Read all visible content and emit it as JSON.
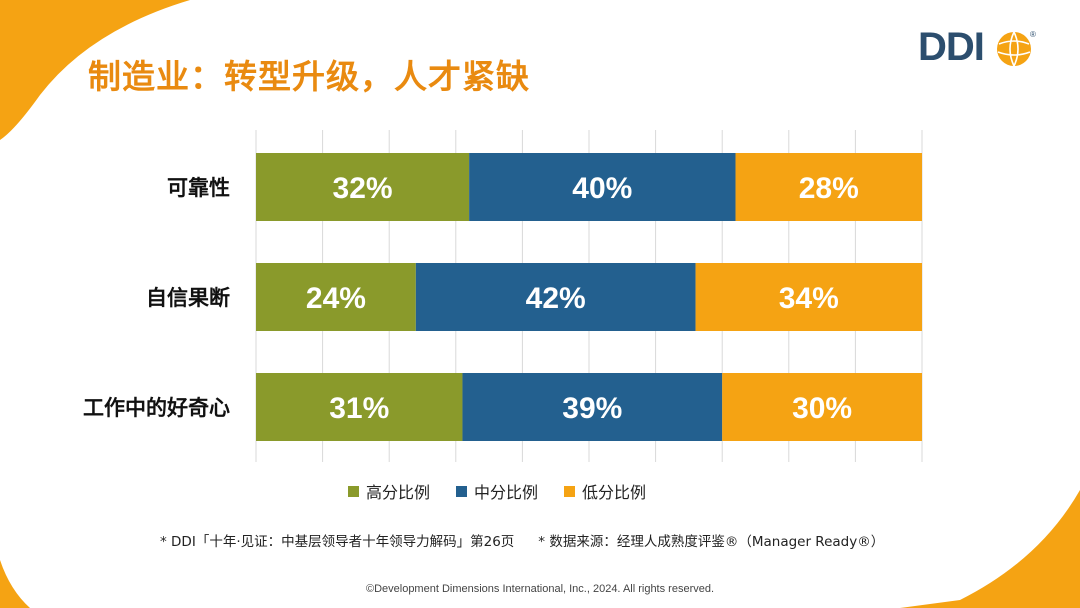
{
  "title": "制造业：转型升级，人才紧缺",
  "logo": {
    "text": "DDI",
    "registered": "®"
  },
  "colors": {
    "high": "#8A9A2B",
    "mid": "#23608F",
    "low": "#F5A313",
    "accent": "#F5A313",
    "title": "#E98A10"
  },
  "chart_data": {
    "type": "bar",
    "orientation": "horizontal",
    "stacked": true,
    "percent": true,
    "categories": [
      "可靠性",
      "自信果断",
      "工作中的好奇心"
    ],
    "series": [
      {
        "name": "高分比例",
        "key": "high",
        "values": [
          32,
          24,
          31
        ]
      },
      {
        "name": "中分比例",
        "key": "mid",
        "values": [
          40,
          42,
          39
        ]
      },
      {
        "name": "低分比例",
        "key": "low",
        "values": [
          28,
          34,
          30
        ]
      }
    ],
    "labels": [
      [
        "32%",
        "40%",
        "28%"
      ],
      [
        "24%",
        "42%",
        "34%"
      ],
      [
        "31%",
        "39%",
        "30%"
      ]
    ],
    "xlim": [
      0,
      100
    ],
    "legend_position": "bottom"
  },
  "footnote": {
    "left": "* DDI「十年·见证：中基层领导者十年领导力解码」第26页",
    "right": "* 数据来源：经理人成熟度评鉴®（Manager Ready®）"
  },
  "copyright": "©Development Dimensions International, Inc., 2024. All rights reserved."
}
